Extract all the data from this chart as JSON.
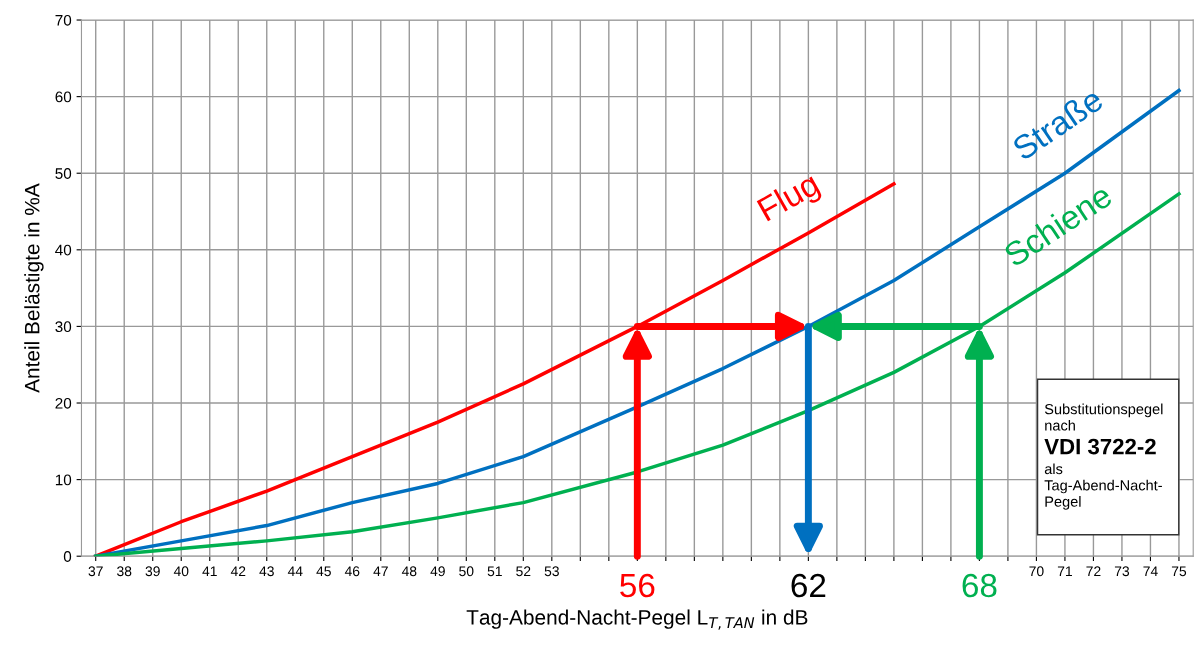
{
  "chart_data": {
    "type": "line",
    "x": [
      37,
      40,
      43,
      46,
      49,
      52,
      56,
      59,
      62,
      65,
      68,
      71,
      75
    ],
    "series": [
      {
        "name": "Flug",
        "color": "#ff0000",
        "x": [
          37,
          40,
          43,
          46,
          49,
          52,
          56,
          59,
          62,
          65
        ],
        "values": [
          0,
          4.5,
          8.5,
          13,
          17.5,
          22.5,
          30,
          36,
          42.2,
          48.6
        ]
      },
      {
        "name": "Straße",
        "color": "#0070c0",
        "values": [
          0,
          2,
          4,
          7,
          9.5,
          13,
          19.5,
          24.5,
          30,
          36,
          43,
          50,
          60.8
        ]
      },
      {
        "name": "Schiene",
        "color": "#00b050",
        "values": [
          0,
          1,
          2,
          3.2,
          5,
          7,
          11,
          14.5,
          19,
          24,
          30,
          37,
          47.3
        ]
      }
    ],
    "xlabel": "Tag-Abend-Nacht-Pegel L$_{T,TAN}$ in dB",
    "ylabel": "Anteil Belästigte in %A",
    "xlim": [
      36.5,
      75.5
    ],
    "xticks": [
      37,
      38,
      39,
      40,
      41,
      42,
      43,
      44,
      45,
      46,
      47,
      48,
      49,
      50,
      51,
      52,
      53,
      {
        "value": 54,
        "label": null
      },
      {
        "value": 55,
        "label": null
      },
      {
        "value": 56,
        "label": null
      },
      {
        "value": 57,
        "label": null
      },
      {
        "value": 58,
        "label": null
      },
      {
        "value": 59,
        "label": null
      },
      {
        "value": 60,
        "label": null
      },
      {
        "value": 61,
        "label": null
      },
      {
        "value": 62,
        "label": null
      },
      {
        "value": 63,
        "label": null
      },
      {
        "value": 64,
        "label": null
      },
      {
        "value": 65,
        "label": null
      },
      {
        "value": 66,
        "label": null
      },
      {
        "value": 67,
        "label": null
      },
      {
        "value": 68,
        "label": null
      },
      {
        "value": 69,
        "label": null
      },
      70,
      71,
      72,
      73,
      74,
      75
    ],
    "ylim": [
      0,
      70
    ],
    "yticks": [
      0,
      10,
      20,
      30,
      40,
      50,
      60,
      70
    ],
    "grid": true,
    "annotations": [
      {
        "text": "56",
        "x": 56,
        "y": 30
      },
      {
        "text": "62",
        "x": 62,
        "y": 30
      },
      {
        "text": "68",
        "x": 68,
        "y": 30
      },
      "Substitutionspegel\nnach\nVDI 3722-2\nals\nTag-Abend-Nacht-\nPegel"
    ]
  }
}
